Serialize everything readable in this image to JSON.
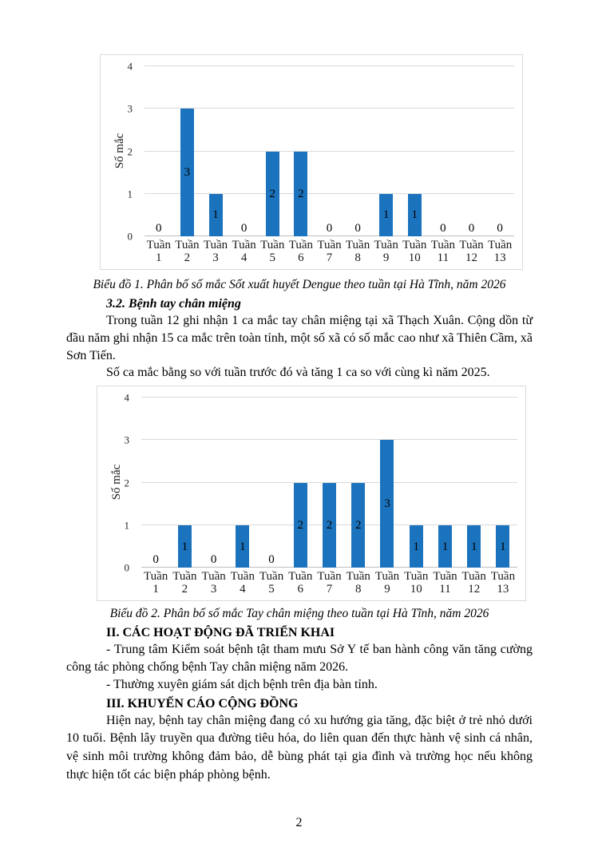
{
  "chart_data": [
    {
      "type": "bar",
      "categories": [
        "Tuần 1",
        "Tuần 2",
        "Tuần 3",
        "Tuần 4",
        "Tuần 5",
        "Tuần 6",
        "Tuần 7",
        "Tuần 8",
        "Tuần 9",
        "Tuần 10",
        "Tuần 11",
        "Tuần 12",
        "Tuần 13"
      ],
      "values": [
        0,
        3,
        1,
        0,
        2,
        2,
        0,
        0,
        1,
        1,
        0,
        0,
        0
      ],
      "title": "",
      "xlabel": "",
      "ylabel": "Số mắc",
      "ylim": [
        0,
        4
      ],
      "yticks": [
        0,
        1,
        2,
        3,
        4
      ],
      "grid": true,
      "legend": "none",
      "data_labels": true,
      "bar_color": "#1b73be",
      "caption": "Biểu đồ 1. Phân bố số mắc Sốt xuất huyết Dengue theo tuần tại Hà Tĩnh, năm 2026"
    },
    {
      "type": "bar",
      "categories": [
        "Tuần 1",
        "Tuần 2",
        "Tuần 3",
        "Tuần 4",
        "Tuần 5",
        "Tuần 6",
        "Tuần 7",
        "Tuần 8",
        "Tuần 9",
        "Tuần 10",
        "Tuần 11",
        "Tuần 12",
        "Tuần 13"
      ],
      "values": [
        0,
        1,
        0,
        1,
        0,
        2,
        2,
        2,
        3,
        1,
        1,
        1,
        1
      ],
      "title": "",
      "xlabel": "",
      "ylabel": "Số mắc",
      "ylim": [
        0,
        4
      ],
      "yticks": [
        0,
        1,
        2,
        3,
        4
      ],
      "grid": true,
      "legend": "none",
      "data_labels": true,
      "bar_color": "#1b73be",
      "caption": "Biểu đồ 2. Phân bố số mắc Tay chân miệng theo tuần tại Hà Tĩnh, năm 2026"
    }
  ],
  "document": {
    "heading_32": "3.2. Bệnh tay chân miệng",
    "para_1": "Trong tuần 12 ghi nhận 1 ca mắc tay chân miệng tại xã Thạch Xuân. Cộng dồn từ đầu năm ghi nhận 15 ca mắc trên toàn tỉnh, một số xã có số mắc cao như xã Thiên Cầm, xã Sơn Tiến.",
    "para_2": "Số ca mắc bằng so với tuần trước đó và tăng 1 ca so với cùng kì năm 2025.",
    "heading_ii": "II. CÁC HOẠT ĐỘNG ĐÃ TRIỂN KHAI",
    "para_3": "- Trung tâm Kiểm soát bệnh tật tham mưu Sở Y tế ban hành công văn tăng cường công tác phòng chống bệnh Tay chân miệng năm 2026.",
    "para_4": "- Thường xuyên giám sát dịch bệnh trên địa bàn tỉnh.",
    "heading_iii": "III. KHUYẾN CÁO CỘNG ĐỒNG",
    "para_5": "Hiện nay, bệnh tay chân miệng đang có xu hướng gia tăng, đặc biệt ở trẻ nhỏ dưới 10 tuổi. Bệnh lây truyền qua đường tiêu hóa, do liên quan đến thực hành vệ sinh cá nhân, vệ sinh môi trường không đảm bảo, dễ bùng phát tại gia đình và trường học nếu không thực hiện tốt các biện pháp phòng bệnh."
  },
  "page": {
    "number": "2"
  },
  "colors": {
    "bar": "#1b73be",
    "gridline": "#d9d9d9",
    "chart_border": "#dadada"
  }
}
